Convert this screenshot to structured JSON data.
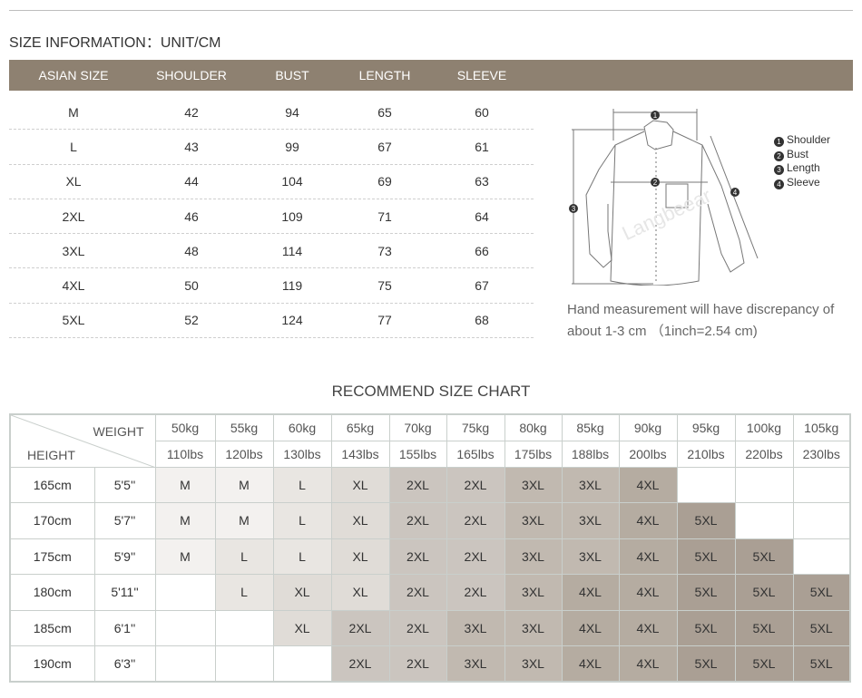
{
  "title": "SIZE INFORMATION：UNIT/CM",
  "size_table": {
    "headers": [
      "ASIAN SIZE",
      "SHOULDER",
      "BUST",
      "LENGTH",
      "SLEEVE"
    ],
    "rows": [
      [
        "M",
        "42",
        "94",
        "65",
        "60"
      ],
      [
        "L",
        "43",
        "99",
        "67",
        "61"
      ],
      [
        "XL",
        "44",
        "104",
        "69",
        "63"
      ],
      [
        "2XL",
        "46",
        "109",
        "71",
        "64"
      ],
      [
        "3XL",
        "48",
        "114",
        "73",
        "66"
      ],
      [
        "4XL",
        "50",
        "119",
        "75",
        "67"
      ],
      [
        "5XL",
        "52",
        "124",
        "77",
        "68"
      ]
    ]
  },
  "diagram": {
    "legend": [
      {
        "n": "1",
        "label": "Shoulder"
      },
      {
        "n": "2",
        "label": "Bust"
      },
      {
        "n": "3",
        "label": "Length"
      },
      {
        "n": "4",
        "label": "Sleeve"
      }
    ],
    "watermark": "Langbeear"
  },
  "note": "Hand measurement will have discrepancy of about 1-3 cm （1inch=2.54 cm)",
  "recommend": {
    "title": "RECOMMEND SIZE CHART",
    "weight_label": "WEIGHT",
    "height_label": "HEIGHT",
    "kg": [
      "50kg",
      "55kg",
      "60kg",
      "65kg",
      "70kg",
      "75kg",
      "80kg",
      "85kg",
      "90kg",
      "95kg",
      "100kg",
      "105kg"
    ],
    "lbs": [
      "110lbs",
      "120lbs",
      "130lbs",
      "143lbs",
      "155lbs",
      "165lbs",
      "175lbs",
      "188lbs",
      "200lbs",
      "210lbs",
      "220lbs",
      "230lbs"
    ],
    "rows": [
      {
        "cm": "165cm",
        "ft": "5'5''",
        "sizes": [
          "M",
          "M",
          "L",
          "XL",
          "2XL",
          "2XL",
          "3XL",
          "3XL",
          "4XL",
          "",
          "",
          ""
        ]
      },
      {
        "cm": "170cm",
        "ft": "5'7''",
        "sizes": [
          "M",
          "M",
          "L",
          "XL",
          "2XL",
          "2XL",
          "3XL",
          "3XL",
          "4XL",
          "5XL",
          "",
          ""
        ]
      },
      {
        "cm": "175cm",
        "ft": "5'9''",
        "sizes": [
          "M",
          "L",
          "L",
          "XL",
          "2XL",
          "2XL",
          "3XL",
          "3XL",
          "4XL",
          "5XL",
          "5XL",
          ""
        ]
      },
      {
        "cm": "180cm",
        "ft": "5'11''",
        "sizes": [
          "",
          "L",
          "XL",
          "XL",
          "2XL",
          "2XL",
          "3XL",
          "4XL",
          "4XL",
          "5XL",
          "5XL",
          "5XL"
        ]
      },
      {
        "cm": "185cm",
        "ft": "6'1''",
        "sizes": [
          "",
          "",
          "XL",
          "2XL",
          "2XL",
          "3XL",
          "3XL",
          "4XL",
          "4XL",
          "5XL",
          "5XL",
          "5XL"
        ]
      },
      {
        "cm": "190cm",
        "ft": "6'3''",
        "sizes": [
          "",
          "",
          "",
          "2XL",
          "2XL",
          "3XL",
          "3XL",
          "4XL",
          "4XL",
          "5XL",
          "5XL",
          "5XL"
        ]
      }
    ],
    "colors": {
      "M": "#f3f1ef",
      "L": "#e9e6e2",
      "XL": "#e0dcd7",
      "2XL": "#cbc5bf",
      "3XL": "#c1b9b0",
      "4XL": "#b5aca1",
      "5XL": "#aa9f94"
    }
  },
  "colors": {
    "header_bg": "#8e8171"
  }
}
